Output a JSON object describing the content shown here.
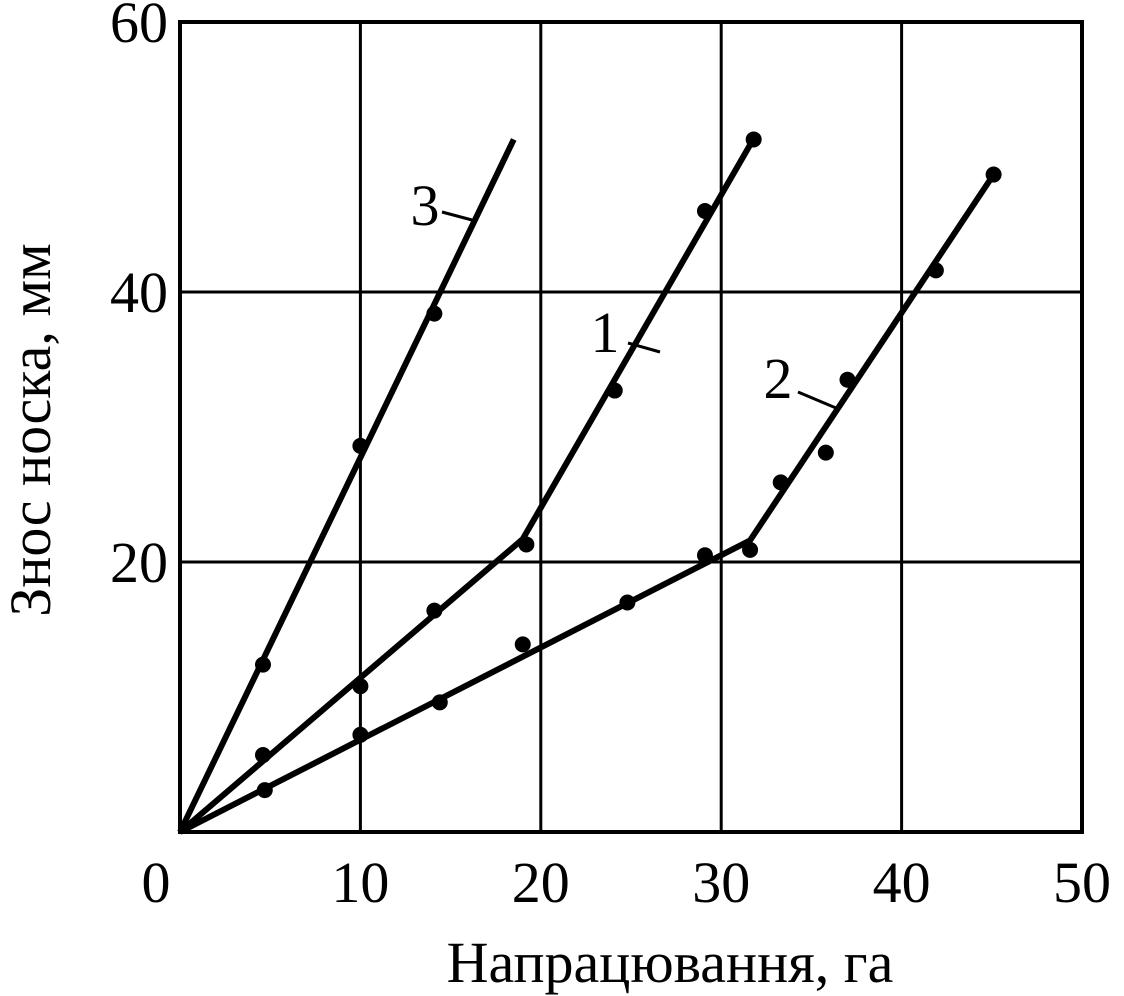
{
  "chart_data": {
    "type": "scatter",
    "x_label": "Напрацювання, га",
    "y_label": "Знос носка, мм",
    "xlim": [
      0,
      50
    ],
    "ylim": [
      0,
      60
    ],
    "xticks": [
      0,
      10,
      20,
      30,
      40,
      50
    ],
    "yticks": [
      20,
      40,
      60
    ],
    "grid": true,
    "color": "#000000",
    "series": [
      {
        "name": "1",
        "color": "#000000",
        "x": [
          4.6,
          10,
          14.1,
          19.2,
          24.1,
          29.1,
          31.8
        ],
        "values": [
          5.7,
          10.8,
          16.4,
          21.3,
          32.7,
          46,
          51.3
        ],
        "fit_x": [
          0,
          19,
          31.6
        ],
        "fit_y": [
          0,
          21.7,
          50.9
        ]
      },
      {
        "name": "2",
        "color": "#000000",
        "x": [
          4.7,
          10,
          14.4,
          19,
          24.8,
          29.1,
          31.6,
          33.3,
          35.8,
          37,
          41.9,
          45.1
        ],
        "values": [
          3.1,
          7.2,
          9.6,
          13.9,
          17,
          20.5,
          20.9,
          25.9,
          28.1,
          33.5,
          41.6,
          48.7
        ],
        "fit_x": [
          0,
          31.6,
          45
        ],
        "fit_y": [
          0,
          21.6,
          48.5
        ]
      },
      {
        "name": "3",
        "color": "#000000",
        "x": [
          4.6,
          10,
          14.1
        ],
        "values": [
          12.4,
          28.6,
          38.4
        ],
        "fit_x": [
          0,
          18.5
        ],
        "fit_y": [
          0,
          51.3
        ]
      }
    ]
  }
}
